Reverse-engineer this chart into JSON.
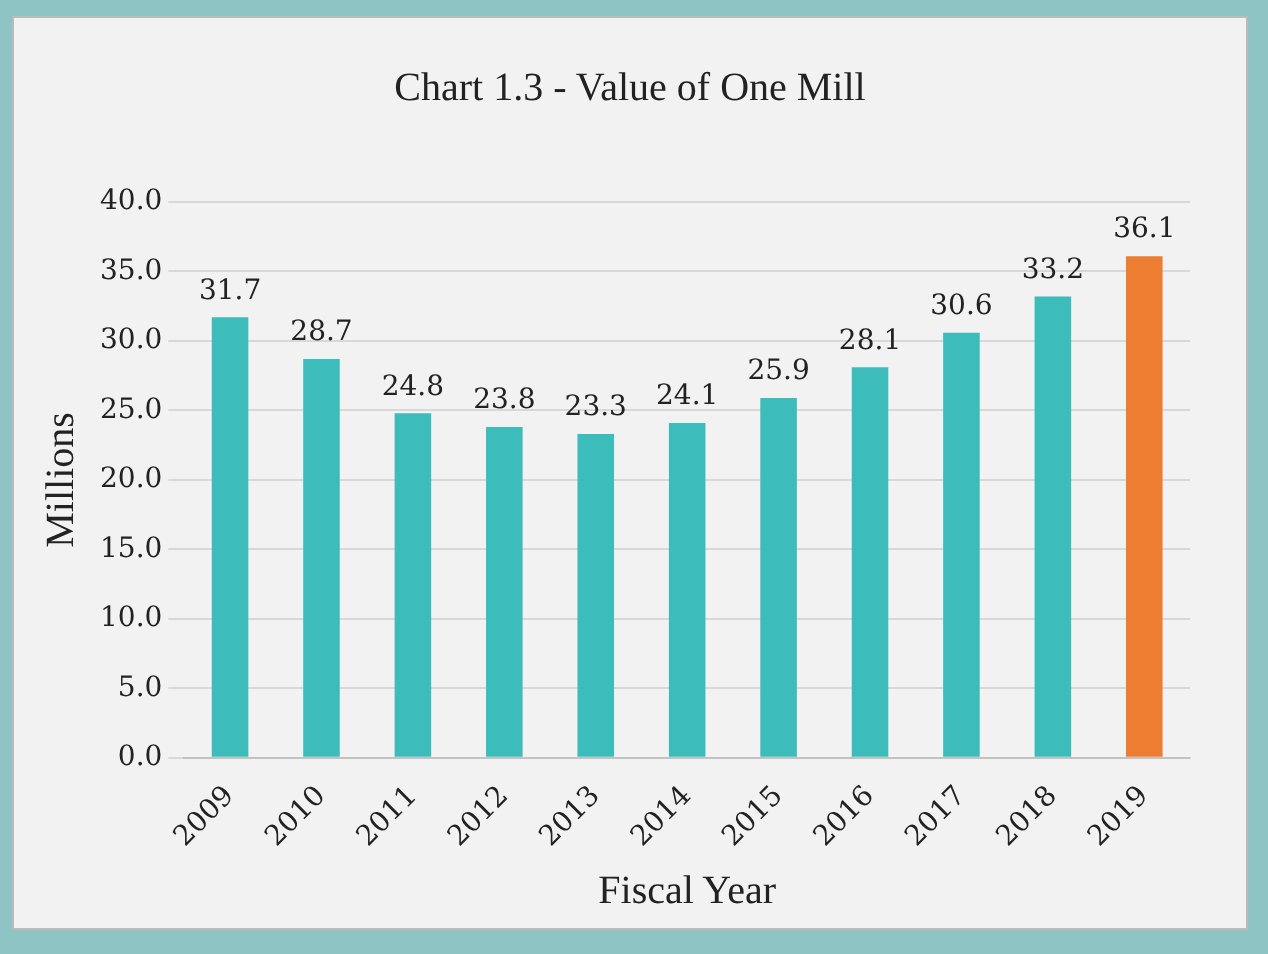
{
  "chart_data": {
    "type": "bar",
    "title": "Chart 1.3 - Value of One Mill",
    "xlabel": "Fiscal Year",
    "ylabel": "Millions",
    "categories": [
      "2009",
      "2010",
      "2011",
      "2012",
      "2013",
      "2014",
      "2015",
      "2016",
      "2017",
      "2018",
      "2019"
    ],
    "values": [
      31.7,
      28.7,
      24.8,
      23.8,
      23.3,
      24.1,
      25.9,
      28.1,
      30.6,
      33.2,
      36.1
    ],
    "colors": [
      "#3dbcbc",
      "#3dbcbc",
      "#3dbcbc",
      "#3dbcbc",
      "#3dbcbc",
      "#3dbcbc",
      "#3dbcbc",
      "#3dbcbc",
      "#3dbcbc",
      "#3dbcbc",
      "#ed7d31"
    ],
    "ylim": [
      0,
      40
    ],
    "yticks": [
      {
        "value": 0,
        "label": "0.0"
      },
      {
        "value": 5,
        "label": "5.0"
      },
      {
        "value": 10,
        "label": "10.0"
      },
      {
        "value": 15,
        "label": "15.0"
      },
      {
        "value": 20,
        "label": "20.0"
      },
      {
        "value": 25,
        "label": "25.0"
      },
      {
        "value": 30,
        "label": "30.0"
      },
      {
        "value": 35,
        "label": "35.0"
      },
      {
        "value": 40,
        "label": "40.0"
      }
    ],
    "grid": "y",
    "data_labels": true
  }
}
